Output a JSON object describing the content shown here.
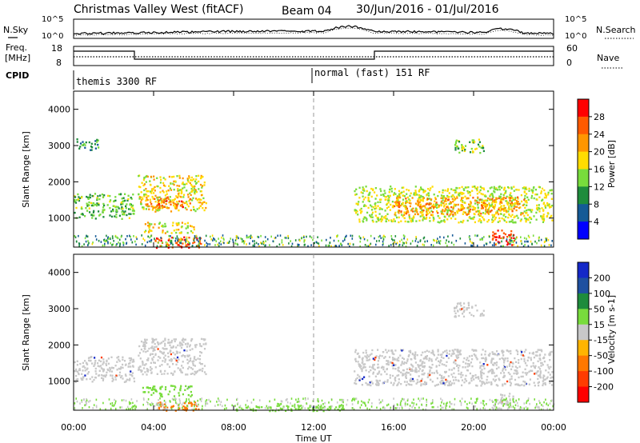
{
  "header": {
    "title": "Christmas Valley West (fitACF)",
    "beam": "Beam 04",
    "date_range": "30/Jun/2016 - 01/Jul/2016"
  },
  "noise_panel": {
    "left_label": "N.Sky",
    "right_label": "N.Search",
    "ticks_left": [
      "10^5",
      "10^0"
    ],
    "ticks_right": [
      "10^5",
      "10^0"
    ]
  },
  "freq_panel": {
    "left_label_1": "Freq.",
    "left_label_2": "[MHz]",
    "right_label": "Nave",
    "ticks_left": [
      "18",
      "8"
    ],
    "ticks_right": [
      "60",
      "0"
    ]
  },
  "cpid": {
    "label": "CPID",
    "modes": [
      {
        "name": "themis 3300 RF"
      },
      {
        "name": "normal (fast) 151 RF"
      }
    ]
  },
  "chart_data": [
    {
      "type": "heatmap",
      "name": "power",
      "ylabel": "Slant Range [km]",
      "yticks": [
        "4000",
        "3000",
        "2000",
        "1000"
      ],
      "ylim": [
        200,
        4500
      ],
      "xlim_hours": [
        0,
        24
      ],
      "colorbar": {
        "label": "Power [dB]",
        "ticks": [
          "28",
          "24",
          "20",
          "16",
          "12",
          "8",
          "4"
        ],
        "colors": [
          "#ff0000",
          "#ff5a00",
          "#ff9600",
          "#ffdc00",
          "#78dc3c",
          "#1e8c3c",
          "#145a96",
          "#0000ff"
        ]
      },
      "regions": [
        {
          "t0": 0.0,
          "t1": 3.0,
          "r0": 1000,
          "r1": 1700,
          "level": 13
        },
        {
          "t0": 3.2,
          "t1": 6.6,
          "r0": 1200,
          "r1": 2200,
          "level": 18
        },
        {
          "t0": 3.6,
          "t1": 5.8,
          "r0": 1300,
          "r1": 1600,
          "level": 25
        },
        {
          "t0": 3.4,
          "t1": 6.0,
          "r0": 600,
          "r1": 900,
          "level": 18
        },
        {
          "t0": 4.0,
          "t1": 6.4,
          "r0": 200,
          "r1": 500,
          "level": 27
        },
        {
          "t0": 14.0,
          "t1": 23.9,
          "r0": 900,
          "r1": 1900,
          "level": 16
        },
        {
          "t0": 16.0,
          "t1": 22.5,
          "r0": 1100,
          "r1": 1600,
          "level": 22
        },
        {
          "t0": 20.9,
          "t1": 22.0,
          "r0": 250,
          "r1": 700,
          "level": 29
        },
        {
          "t0": 19.0,
          "t1": 20.5,
          "r0": 2800,
          "r1": 3200,
          "level": 14
        },
        {
          "t0": 0.1,
          "t1": 1.2,
          "r0": 2900,
          "r1": 3200,
          "level": 10
        }
      ]
    },
    {
      "type": "heatmap",
      "name": "velocity",
      "ylabel": "Slant Range [km]",
      "yticks": [
        "4000",
        "3000",
        "2000",
        "1000"
      ],
      "ylim": [
        200,
        4500
      ],
      "xlim_hours": [
        0,
        24
      ],
      "xticks": [
        "00:00",
        "04:00",
        "08:00",
        "12:00",
        "16:00",
        "20:00",
        "00:00"
      ],
      "xlabel": "Time UT",
      "colorbar": {
        "label": "Velocity [m s-1]",
        "ticks": [
          "200",
          "100",
          "50",
          "15",
          "-15",
          "-50",
          "-100",
          "-200"
        ],
        "colors": [
          "#1428c8",
          "#1e50a0",
          "#1e8c3c",
          "#78dc3c",
          "#c8c8c8",
          "#ffb400",
          "#ff7800",
          "#ff3c00",
          "#ff0000"
        ]
      },
      "regions": [
        {
          "t0": 0.0,
          "t1": 3.0,
          "r0": 1000,
          "r1": 1700,
          "level": 0
        },
        {
          "t0": 3.2,
          "t1": 6.6,
          "r0": 1200,
          "r1": 2200,
          "level": 0
        },
        {
          "t0": 3.4,
          "t1": 6.0,
          "r0": 600,
          "r1": 900,
          "level": 40
        },
        {
          "t0": 4.0,
          "t1": 6.4,
          "r0": 200,
          "r1": 450,
          "level": -60
        },
        {
          "t0": 14.0,
          "t1": 23.9,
          "r0": 900,
          "r1": 1900,
          "level": 0
        },
        {
          "t0": 20.9,
          "t1": 22.0,
          "r0": 250,
          "r1": 700,
          "level": 0
        },
        {
          "t0": 8.0,
          "t1": 13.5,
          "r0": 200,
          "r1": 350,
          "level": 40
        },
        {
          "t0": 19.0,
          "t1": 20.5,
          "r0": 2800,
          "r1": 3200,
          "level": 0
        }
      ]
    }
  ]
}
